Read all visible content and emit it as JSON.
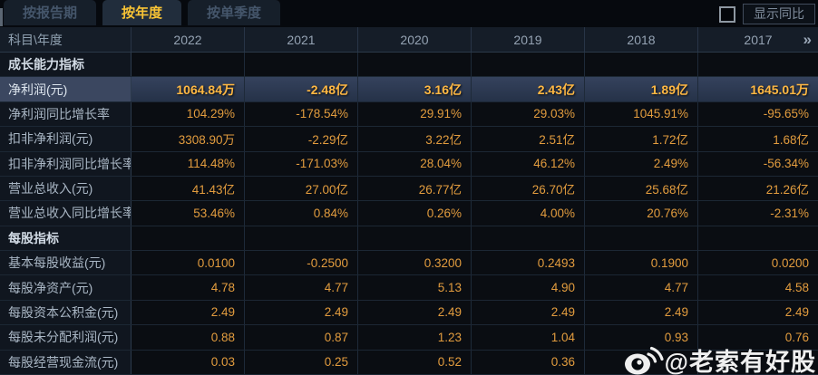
{
  "tabs": [
    {
      "label": "按报告期",
      "active": false
    },
    {
      "label": "按年度",
      "active": true
    },
    {
      "label": "按单季度",
      "active": false
    }
  ],
  "controls": {
    "show_yoy_label": "显示同比",
    "checkbox_checked": false
  },
  "table": {
    "corner_label": "科目\\年度",
    "years": [
      "2022",
      "2021",
      "2020",
      "2019",
      "2018",
      "2017"
    ],
    "more_icon": "»",
    "rows": [
      {
        "type": "section",
        "label": "成长能力指标",
        "values": [
          "",
          "",
          "",
          "",
          "",
          ""
        ]
      },
      {
        "type": "data",
        "highlight": true,
        "label": "净利润(元)",
        "values": [
          "1064.84万",
          "-2.48亿",
          "3.16亿",
          "2.43亿",
          "1.89亿",
          "1645.01万"
        ]
      },
      {
        "type": "data",
        "label": "净利润同比增长率",
        "values": [
          "104.29%",
          "-178.54%",
          "29.91%",
          "29.03%",
          "1045.91%",
          "-95.65%"
        ]
      },
      {
        "type": "data",
        "label": "扣非净利润(元)",
        "values": [
          "3308.90万",
          "-2.29亿",
          "3.22亿",
          "2.51亿",
          "1.72亿",
          "1.68亿"
        ]
      },
      {
        "type": "data",
        "label": "扣非净利润同比增长率",
        "values": [
          "114.48%",
          "-171.03%",
          "28.04%",
          "46.12%",
          "2.49%",
          "-56.34%"
        ]
      },
      {
        "type": "data",
        "label": "营业总收入(元)",
        "values": [
          "41.43亿",
          "27.00亿",
          "26.77亿",
          "26.70亿",
          "25.68亿",
          "21.26亿"
        ]
      },
      {
        "type": "data",
        "label": "营业总收入同比增长率",
        "values": [
          "53.46%",
          "0.84%",
          "0.26%",
          "4.00%",
          "20.76%",
          "-2.31%"
        ]
      },
      {
        "type": "section",
        "label": "每股指标",
        "values": [
          "",
          "",
          "",
          "",
          "",
          ""
        ]
      },
      {
        "type": "data",
        "label": "基本每股收益(元)",
        "values": [
          "0.0100",
          "-0.2500",
          "0.3200",
          "0.2493",
          "0.1900",
          "0.0200"
        ]
      },
      {
        "type": "data",
        "label": "每股净资产(元)",
        "values": [
          "4.78",
          "4.77",
          "5.13",
          "4.90",
          "4.77",
          "4.58"
        ]
      },
      {
        "type": "data",
        "label": "每股资本公积金(元)",
        "values": [
          "2.49",
          "2.49",
          "2.49",
          "2.49",
          "2.49",
          "2.49"
        ]
      },
      {
        "type": "data",
        "label": "每股未分配利润(元)",
        "values": [
          "0.88",
          "0.87",
          "1.23",
          "1.04",
          "0.93",
          "0.76"
        ]
      },
      {
        "type": "data",
        "label": "每股经营现金流(元)",
        "values": [
          "0.03",
          "0.25",
          "0.52",
          "0.36",
          "",
          ""
        ]
      }
    ]
  },
  "watermark": {
    "handle": "@老索有好股",
    "logo": "weibo-icon"
  },
  "colors": {
    "accent_gold": "#f8c335",
    "value_orange": "#e29c3e",
    "highlight_row_bg": "#2e3b54",
    "page_bg": "#06090e"
  }
}
